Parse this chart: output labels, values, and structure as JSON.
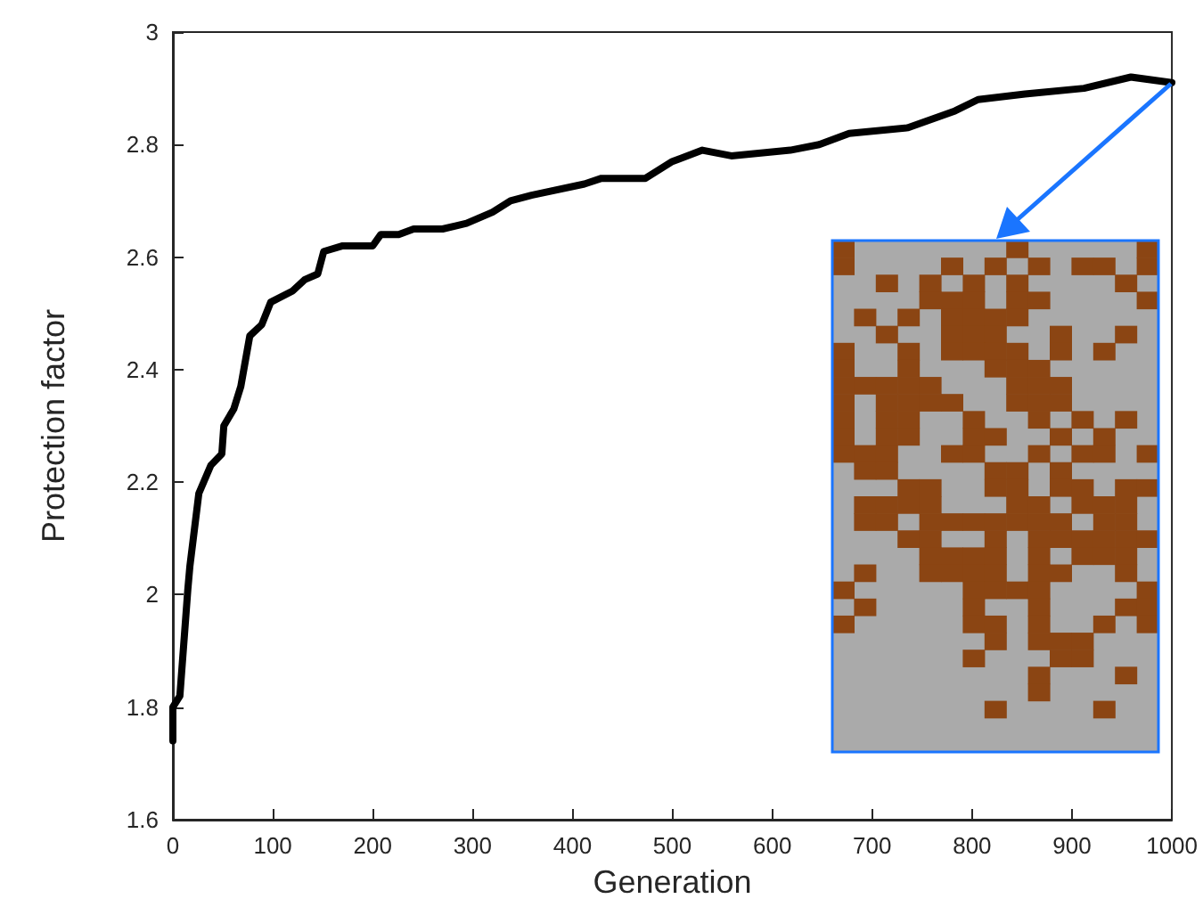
{
  "chart_data": {
    "type": "line",
    "xlabel": "Generation",
    "ylabel": "Protection factor",
    "series": [
      {
        "color": "#000000",
        "x": [
          0,
          0,
          7,
          15,
          17,
          26,
          38,
          49,
          51,
          61,
          68,
          77,
          89,
          98,
          120,
          132,
          145,
          151,
          170,
          200,
          208,
          226,
          241,
          270,
          294,
          320,
          338,
          359,
          412,
          429,
          473,
          500,
          530,
          559,
          618,
          647,
          677,
          736,
          783,
          806,
          853,
          912,
          959,
          1000
        ],
        "values": [
          1.74,
          1.8,
          1.82,
          2.01,
          2.05,
          2.18,
          2.23,
          2.25,
          2.3,
          2.33,
          2.37,
          2.46,
          2.48,
          2.52,
          2.54,
          2.56,
          2.57,
          2.61,
          2.62,
          2.62,
          2.64,
          2.64,
          2.65,
          2.65,
          2.66,
          2.68,
          2.7,
          2.71,
          2.73,
          2.74,
          2.74,
          2.77,
          2.79,
          2.78,
          2.79,
          2.8,
          2.82,
          2.83,
          2.86,
          2.88,
          2.89,
          2.9,
          2.92,
          2.91
        ]
      }
    ],
    "xlim": [
      0,
      1000
    ],
    "xticks": [
      0,
      100,
      200,
      300,
      400,
      500,
      600,
      700,
      800,
      900,
      1000
    ],
    "ylim": [
      1.6,
      3
    ],
    "yticks": [
      1.6,
      1.8,
      2,
      2.2,
      2.4,
      2.6,
      2.8,
      3
    ],
    "line_style": "solid",
    "marker": "none"
  }
}
